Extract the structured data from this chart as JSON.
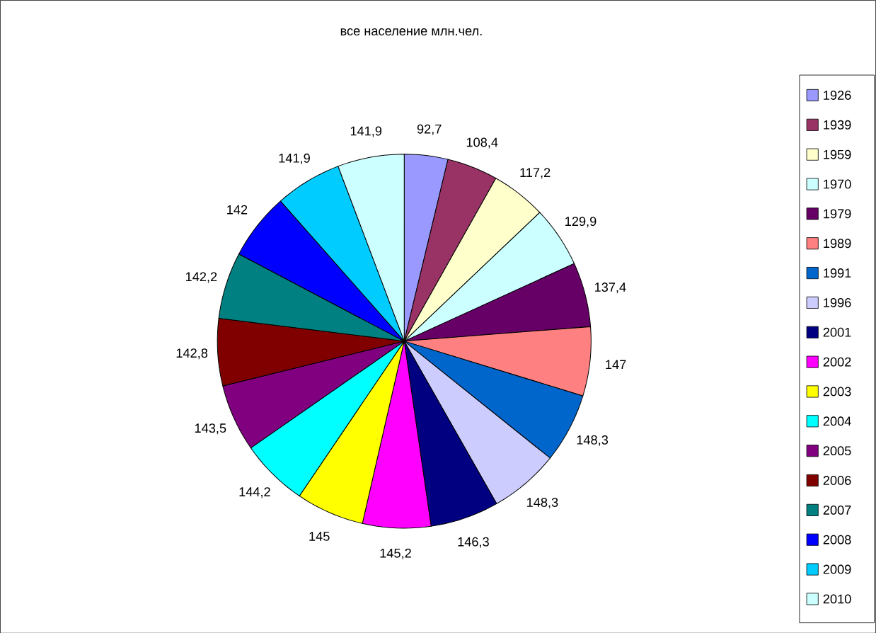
{
  "chart_data": {
    "type": "pie",
    "title": "все население млн.чел.",
    "categories": [
      "1926",
      "1939",
      "1959",
      "1970",
      "1979",
      "1989",
      "1991",
      "1996",
      "2001",
      "2002",
      "2003",
      "2004",
      "2005",
      "2006",
      "2007",
      "2008",
      "2009",
      "2010"
    ],
    "values": [
      92.7,
      108.4,
      117.2,
      129.9,
      137.4,
      147,
      148.3,
      148.3,
      146.3,
      145.2,
      145,
      144.2,
      143.5,
      142.8,
      142.2,
      142,
      141.9,
      141.9
    ],
    "value_labels": [
      "92,7",
      "108,4",
      "117,2",
      "129,9",
      "137,4",
      "147",
      "148,3",
      "148,3",
      "146,3",
      "145,2",
      "145",
      "144,2",
      "143,5",
      "142,8",
      "142,2",
      "142",
      "141,9",
      "141,9"
    ],
    "colors": [
      "#9999ff",
      "#993366",
      "#ffffcc",
      "#ccffff",
      "#660066",
      "#ff8080",
      "#0066cc",
      "#ccccff",
      "#000080",
      "#ff00ff",
      "#ffff00",
      "#00ffff",
      "#800080",
      "#800000",
      "#008080",
      "#0000ff",
      "#00ccff",
      "#ccffff"
    ],
    "legend": "right"
  }
}
